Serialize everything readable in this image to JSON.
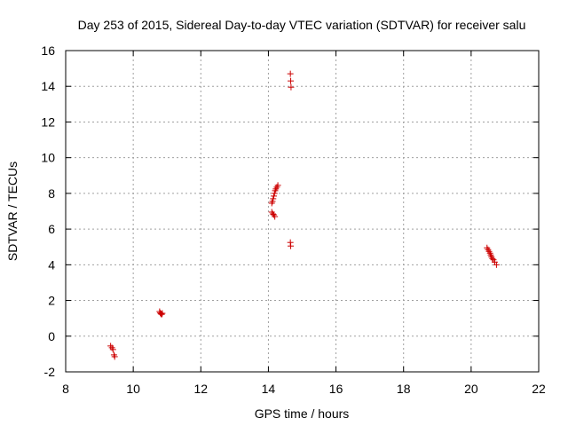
{
  "chart_data": {
    "type": "scatter",
    "title": "Day 253 of 2015, Sidereal Day-to-day VTEC variation (SDTVAR) for receiver salu",
    "xlabel": "GPS time / hours",
    "ylabel": "SDTVAR / TECUs",
    "xlim": [
      8,
      22
    ],
    "ylim": [
      -2,
      16
    ],
    "xticks": [
      8,
      10,
      12,
      14,
      16,
      18,
      20,
      22
    ],
    "yticks": [
      -2,
      0,
      2,
      4,
      6,
      8,
      10,
      12,
      14,
      16
    ],
    "grid": true,
    "marker": "+",
    "colors": {
      "points": "#cc0000",
      "grid": "#a0a0a0",
      "axes": "#000000"
    },
    "series": [
      {
        "name": "SDTVAR",
        "points": [
          [
            9.33,
            -0.55
          ],
          [
            9.37,
            -0.65
          ],
          [
            9.4,
            -0.75
          ],
          [
            9.43,
            -1.05
          ],
          [
            9.45,
            -1.15
          ],
          [
            10.78,
            1.38
          ],
          [
            10.8,
            1.3
          ],
          [
            10.82,
            1.25
          ],
          [
            10.84,
            1.22
          ],
          [
            10.86,
            1.28
          ],
          [
            14.1,
            7.45
          ],
          [
            14.12,
            7.55
          ],
          [
            14.14,
            7.7
          ],
          [
            14.16,
            7.85
          ],
          [
            14.18,
            8.0
          ],
          [
            14.2,
            8.15
          ],
          [
            14.22,
            8.25
          ],
          [
            14.25,
            8.35
          ],
          [
            14.28,
            8.45
          ],
          [
            14.1,
            6.95
          ],
          [
            14.13,
            6.85
          ],
          [
            14.16,
            6.8
          ],
          [
            14.19,
            6.7
          ],
          [
            14.65,
            14.7
          ],
          [
            14.66,
            14.3
          ],
          [
            14.67,
            13.95
          ],
          [
            14.65,
            5.25
          ],
          [
            14.66,
            5.05
          ],
          [
            20.47,
            4.95
          ],
          [
            20.5,
            4.85
          ],
          [
            20.53,
            4.75
          ],
          [
            20.56,
            4.65
          ],
          [
            20.58,
            4.55
          ],
          [
            20.6,
            4.45
          ],
          [
            20.63,
            4.35
          ],
          [
            20.66,
            4.28
          ],
          [
            20.7,
            4.15
          ],
          [
            20.75,
            4.0
          ]
        ]
      }
    ]
  }
}
